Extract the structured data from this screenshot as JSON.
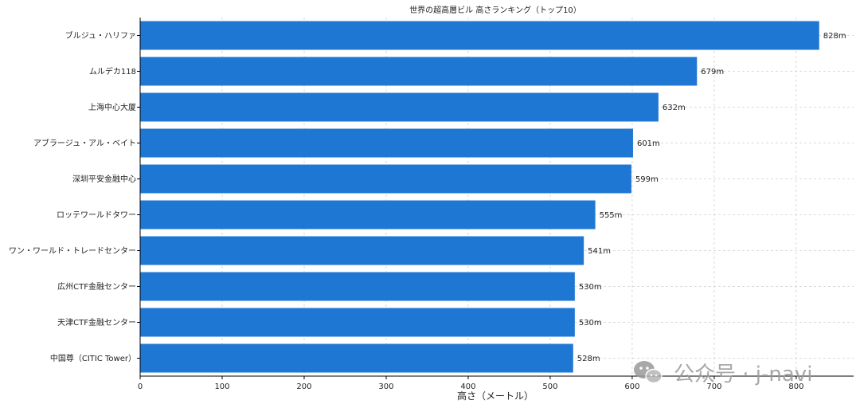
{
  "chart_data": {
    "type": "bar",
    "orientation": "horizontal",
    "title": "世界の超高層ビル 高さランキング（トップ10）",
    "xlabel": "高さ（メートル）",
    "ylabel": "",
    "xlim": [
      0,
      870
    ],
    "xticks": [
      0,
      100,
      200,
      300,
      400,
      500,
      600,
      700,
      800
    ],
    "grid": true,
    "color": "#1f77d4",
    "categories": [
      "ブルジュ・ハリファ",
      "ムルデカ118",
      "上海中心大厦",
      "アブラージュ・アル・ベイト",
      "深圳平安金融中心",
      "ロッテワールドタワー",
      "ワン・ワールド・トレードセンター",
      "広州CTF金融センター",
      "天津CTF金融センター",
      "中国尊（CITIC Tower）"
    ],
    "values": [
      828,
      679,
      632,
      601,
      599,
      555,
      541,
      530,
      530,
      528
    ],
    "data_labels": [
      "828m",
      "679m",
      "632m",
      "601m",
      "599m",
      "555m",
      "541m",
      "530m",
      "530m",
      "528m"
    ]
  },
  "watermark": {
    "text": "公众号 · j-navi",
    "icon": "wechat-icon"
  }
}
